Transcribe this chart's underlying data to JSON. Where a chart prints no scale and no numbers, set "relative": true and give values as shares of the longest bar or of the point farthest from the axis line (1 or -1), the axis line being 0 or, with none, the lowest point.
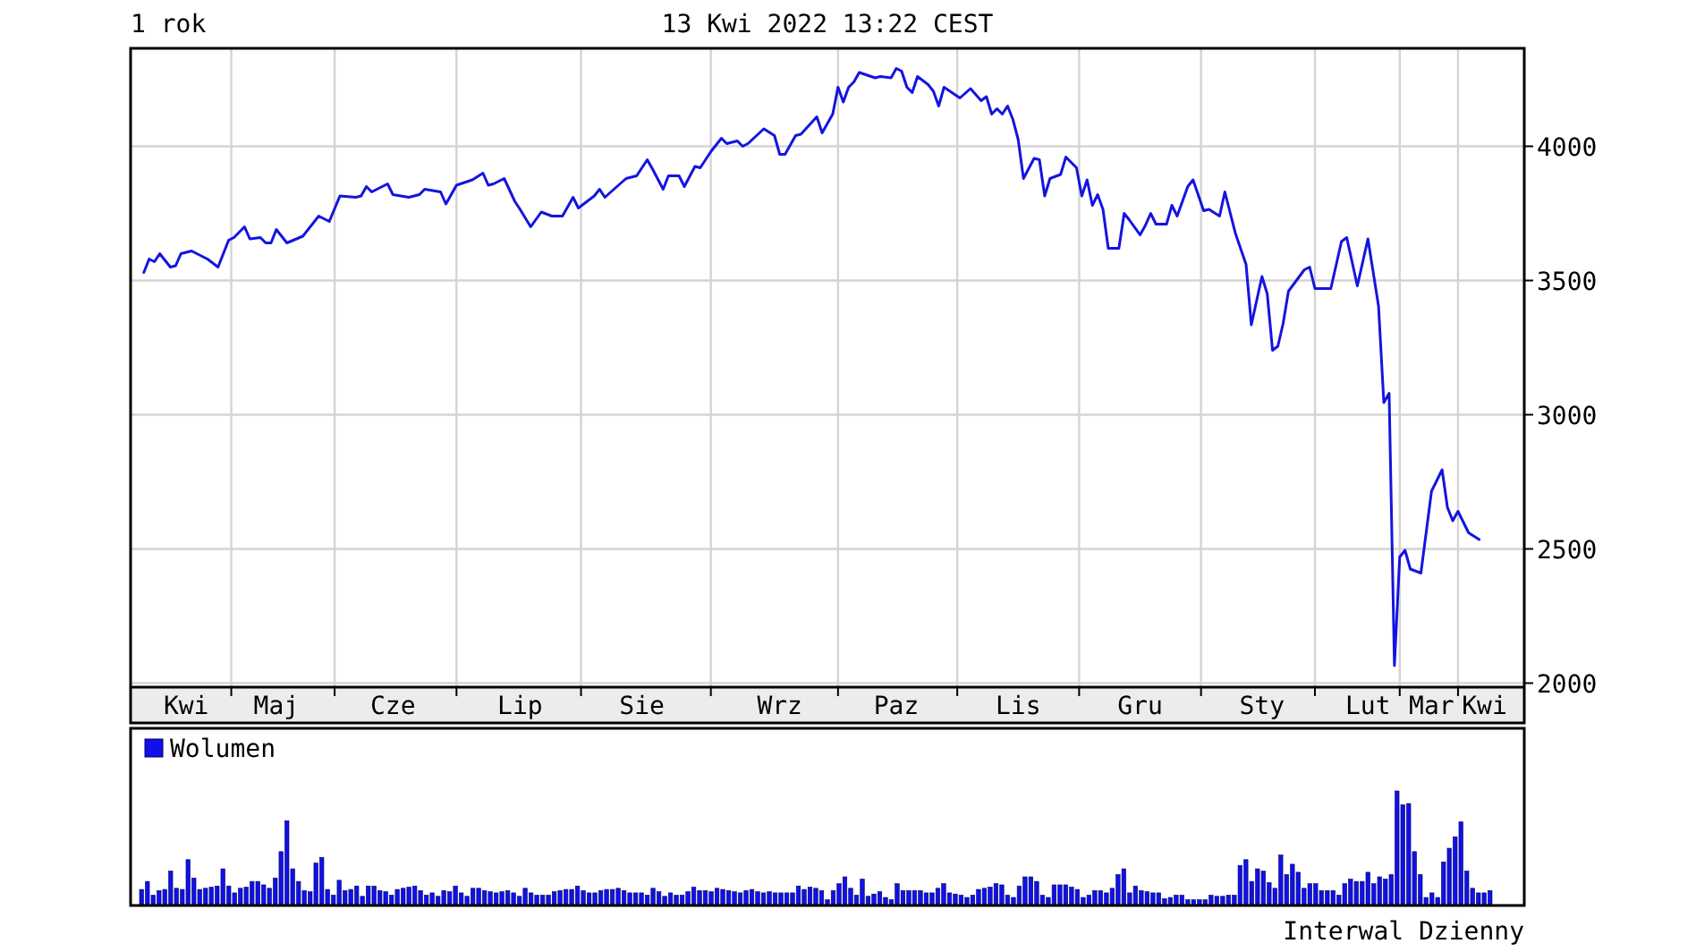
{
  "chart_data": [
    {
      "type": "line",
      "title": "1 rok",
      "subtitle": "13 Kwi 2022 13:22 CEST",
      "categories": [
        null,
        null,
        null,
        null,
        null,
        null,
        null,
        null,
        null,
        null,
        "Kwi",
        null,
        null,
        null,
        null,
        null,
        null,
        null,
        null,
        null,
        null,
        null,
        null,
        null,
        null,
        null,
        null,
        "Maj",
        null,
        null,
        null,
        null,
        null,
        null,
        null,
        null,
        null,
        null,
        null,
        null,
        null,
        null,
        null,
        null,
        null,
        null,
        null,
        null,
        null,
        "Cze",
        null,
        null,
        null,
        null,
        null,
        null,
        null,
        null,
        null,
        null,
        null,
        null,
        null,
        null,
        null,
        null,
        null,
        null,
        null,
        null,
        null,
        null,
        null,
        "Lip",
        null,
        null,
        null,
        null,
        null,
        null,
        null,
        null,
        null,
        null,
        null,
        null,
        null,
        null,
        null,
        null,
        null,
        null,
        null,
        null,
        null,
        null,
        "Sie",
        null,
        null,
        null,
        null,
        null,
        null,
        null,
        null,
        null,
        null,
        null,
        null,
        null,
        null,
        null,
        null,
        null,
        null,
        null,
        null,
        null,
        null,
        null,
        null,
        null,
        "Wrz",
        null,
        null,
        null,
        null,
        null,
        null,
        null,
        null,
        null,
        null,
        null,
        null,
        null,
        null,
        null,
        null,
        null,
        null,
        null,
        null,
        null,
        "Paz",
        null,
        null,
        null,
        null,
        null,
        null,
        null,
        null,
        null,
        null,
        null,
        null,
        null,
        null,
        null,
        null,
        null,
        null,
        null,
        null,
        null,
        null,
        "Lis",
        null,
        null,
        null,
        null,
        null,
        null,
        null,
        null,
        null,
        null,
        null,
        null,
        null,
        null,
        null,
        null,
        null,
        null,
        null,
        null,
        null,
        null,
        "Gru",
        null,
        null,
        null,
        null,
        null,
        null,
        null,
        null,
        null,
        null,
        null,
        null,
        null,
        null,
        null,
        null,
        null,
        null,
        null,
        null,
        null,
        null,
        "Sty",
        null,
        null,
        null,
        null,
        null,
        null,
        null,
        null,
        null,
        null,
        null,
        null,
        null,
        null,
        null,
        null,
        null,
        null,
        null,
        "Lut",
        null,
        null,
        null,
        null,
        null,
        null,
        null,
        null,
        null,
        null,
        null,
        "Mar",
        null,
        null,
        null,
        null,
        null,
        null,
        null,
        null,
        null,
        "Kwi",
        null,
        null,
        null,
        null,
        null,
        null,
        null
      ],
      "ylim": [
        1985,
        4365
      ],
      "yticks": [
        2000,
        2500,
        3000,
        3500,
        4000
      ],
      "grid": true,
      "series": [
        {
          "color": "#1414e0",
          "values": [
            null,
            null,
            3530,
            3580,
            3570,
            3600,
            null,
            3550,
            3555,
            3600,
            null,
            3610,
            null,
            null,
            3580,
            null,
            3550,
            null,
            3650,
            3660,
            null,
            3700,
            3655,
            null,
            3660,
            3640,
            3640,
            3690,
            null,
            3640,
            null,
            null,
            3665,
            null,
            null,
            3740,
            null,
            3720,
            null,
            3815,
            null,
            null,
            3810,
            3815,
            3850,
            3830,
            null,
            null,
            3860,
            3820,
            null,
            null,
            3810,
            null,
            3820,
            3840,
            null,
            null,
            3830,
            3785,
            null,
            3855,
            null,
            null,
            3875,
            null,
            3900,
            3855,
            3860,
            null,
            3880,
            null,
            3795,
            3765,
            null,
            3700,
            null,
            3755,
            null,
            3740,
            null,
            3740,
            null,
            3810,
            3770,
            null,
            null,
            3815,
            3840,
            3810,
            null,
            null,
            null,
            3880,
            null,
            3890,
            null,
            3950,
            3915,
            null,
            3840,
            3890,
            null,
            3890,
            3850,
            null,
            3925,
            3920,
            null,
            3980,
            null,
            4030,
            4010,
            null,
            4020,
            4000,
            4010,
            null,
            null,
            4065,
            null,
            4040,
            3970,
            3970,
            null,
            4040,
            4045,
            null,
            null,
            4110,
            4050,
            null,
            4120,
            4220,
            4165,
            4220,
            4240,
            4275,
            null,
            null,
            4255,
            4260,
            null,
            4255,
            4290,
            4280,
            4220,
            4200,
            4260,
            null,
            4230,
            4205,
            4150,
            4220,
            null,
            null,
            4180,
            null,
            4215,
            null,
            4170,
            4185,
            4120,
            4140,
            4120,
            4150,
            4100,
            4025,
            3880,
            null,
            3955,
            3950,
            3815,
            3880,
            null,
            3895,
            3960,
            null,
            3920,
            3815,
            3875,
            3780,
            3820,
            3765,
            3620,
            null,
            3620,
            3750,
            3725,
            null,
            3670,
            3705,
            3750,
            3710,
            null,
            3710,
            3780,
            3740,
            null,
            3850,
            3875,
            null,
            3760,
            3765,
            null,
            3740,
            3830,
            null,
            3675,
            null,
            3560,
            3335,
            null,
            3515,
            3450,
            3240,
            3255,
            3340,
            3460,
            null,
            null,
            3540,
            3550,
            3470,
            null,
            null,
            3470,
            null,
            3645,
            3660,
            null,
            3480,
            null,
            3655,
            null,
            3405,
            3045,
            3080,
            2065,
            2470,
            2495,
            2425,
            null,
            2410,
            null,
            2715,
            null,
            2795,
            2655,
            2605,
            2640,
            null,
            2560,
            null,
            2535,
            null,
            null,
            null,
            null,
            null,
            null,
            null,
            null
          ]
        }
      ]
    },
    {
      "type": "bar",
      "relative": true,
      "legend": "top left",
      "annotations": [
        "Interwal Dzienny"
      ],
      "categories": [
        null,
        null,
        null,
        null,
        null,
        null,
        null,
        null,
        null,
        null,
        null,
        null,
        null,
        null,
        null,
        null,
        null,
        null,
        null,
        null,
        null,
        null,
        null,
        null,
        null,
        null,
        null,
        null,
        null,
        null,
        null,
        null,
        null,
        null,
        null,
        null,
        null,
        null,
        null,
        null,
        null,
        null,
        null,
        null,
        null,
        null,
        null,
        null,
        null,
        null,
        null,
        null,
        null,
        null,
        null,
        null,
        null,
        null,
        null,
        null,
        null,
        null,
        null,
        null,
        null,
        null,
        null,
        null,
        null,
        null,
        null,
        null,
        null,
        null,
        null,
        null,
        null,
        null,
        null,
        null,
        null,
        null,
        null,
        null,
        null,
        null,
        null,
        null,
        null,
        null,
        null,
        null,
        null,
        null,
        null,
        null,
        null,
        null,
        null,
        null,
        null,
        null,
        null,
        null,
        null,
        null,
        null,
        null,
        null,
        null,
        null,
        null,
        null,
        null,
        null,
        null,
        null,
        null,
        null,
        null,
        null,
        null,
        null,
        null,
        null,
        null,
        null,
        null,
        null,
        null,
        null,
        null,
        null,
        null,
        null,
        null,
        null,
        null,
        null,
        null,
        null,
        null,
        null,
        null,
        null,
        null,
        null,
        null,
        null,
        null,
        null,
        null,
        null,
        null,
        null,
        null,
        null,
        null,
        null,
        null,
        null,
        null,
        null,
        null,
        null,
        null,
        null,
        null,
        null,
        null,
        null,
        null,
        null,
        null,
        null,
        null,
        null,
        null,
        null,
        null,
        null,
        null,
        null,
        null,
        null,
        null,
        null,
        null,
        null,
        null,
        null,
        null,
        null,
        null,
        null,
        null,
        null,
        null,
        null,
        null,
        null,
        null,
        null,
        null,
        null,
        null,
        null,
        null,
        null,
        null,
        null,
        null,
        null,
        null,
        null,
        null,
        null,
        null,
        null,
        null,
        null,
        null,
        null,
        null,
        null,
        null,
        null,
        null,
        null,
        null,
        null,
        null,
        null
      ],
      "series": [
        {
          "name": "Wolumen",
          "color": "#1010e8",
          "values": [
            0.14,
            0.21,
            0.09,
            0.13,
            0.14,
            0.3,
            0.15,
            0.14,
            0.4,
            0.24,
            0.14,
            0.15,
            0.16,
            0.17,
            0.32,
            0.17,
            0.11,
            0.15,
            0.16,
            0.21,
            0.21,
            0.18,
            0.15,
            0.24,
            0.47,
            0.74,
            0.32,
            0.21,
            0.13,
            0.12,
            0.37,
            0.42,
            0.14,
            0.09,
            0.22,
            0.13,
            0.14,
            0.17,
            0.08,
            0.17,
            0.17,
            0.13,
            0.12,
            0.09,
            0.14,
            0.15,
            0.16,
            0.17,
            0.13,
            0.09,
            0.11,
            0.08,
            0.13,
            0.12,
            0.17,
            0.11,
            0.08,
            0.15,
            0.15,
            0.13,
            0.12,
            0.11,
            0.12,
            0.13,
            0.11,
            0.08,
            0.15,
            0.11,
            0.09,
            0.09,
            0.09,
            0.12,
            0.13,
            0.14,
            0.14,
            0.17,
            0.13,
            0.11,
            0.11,
            0.13,
            0.14,
            0.14,
            0.15,
            0.13,
            0.11,
            0.11,
            0.11,
            0.09,
            0.15,
            0.12,
            0.08,
            0.11,
            0.09,
            0.09,
            0.12,
            0.16,
            0.13,
            0.13,
            0.12,
            0.15,
            0.14,
            0.13,
            0.12,
            0.11,
            0.13,
            0.14,
            0.12,
            0.11,
            0.12,
            0.11,
            0.11,
            0.11,
            0.11,
            0.17,
            0.14,
            0.16,
            0.15,
            0.13,
            0.05,
            0.13,
            0.19,
            0.25,
            0.15,
            0.09,
            0.23,
            0.08,
            0.1,
            0.12,
            0.07,
            0.05,
            0.19,
            0.13,
            0.13,
            0.13,
            0.13,
            0.11,
            0.11,
            0.15,
            0.19,
            0.11,
            0.1,
            0.09,
            0.07,
            0.09,
            0.14,
            0.15,
            0.16,
            0.19,
            0.18,
            0.09,
            0.07,
            0.17,
            0.25,
            0.25,
            0.21,
            0.09,
            0.07,
            0.18,
            0.18,
            0.18,
            0.16,
            0.14,
            0.07,
            0.09,
            0.13,
            0.13,
            0.11,
            0.15,
            0.27,
            0.32,
            0.11,
            0.17,
            0.13,
            0.12,
            0.11,
            0.11,
            0.06,
            0.07,
            0.09,
            0.09,
            0.05,
            0.05,
            0.05,
            0.05,
            0.09,
            0.08,
            0.08,
            0.09,
            0.09,
            0.35,
            0.4,
            0.21,
            0.32,
            0.3,
            0.2,
            0.15,
            0.44,
            0.27,
            0.36,
            0.29,
            0.15,
            0.19,
            0.19,
            0.13,
            0.13,
            0.13,
            0.09,
            0.19,
            0.23,
            0.21,
            0.21,
            0.29,
            0.19,
            0.25,
            0.23,
            0.27,
            1,
            0.88,
            0.89,
            0.47,
            0.27,
            0.07,
            0.11,
            0.07,
            0.38,
            0.5,
            0.6,
            0.73,
            0.3,
            0.15,
            0.11,
            0.11,
            0.13
          ]
        }
      ]
    }
  ]
}
